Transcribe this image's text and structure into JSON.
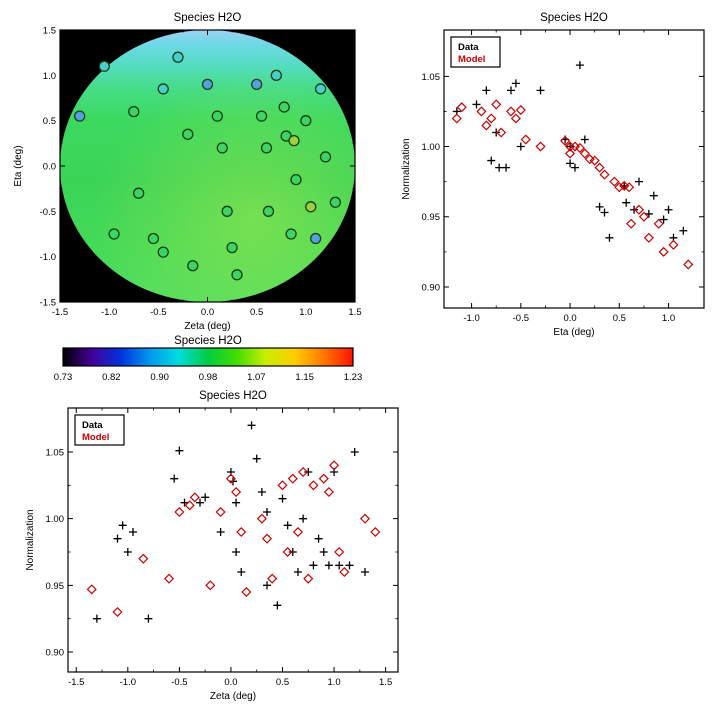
{
  "figure": {
    "background": "#ffffff"
  },
  "colors": {
    "data_series": "#000000",
    "model_series": "#cc0000",
    "map_background": "#000000"
  },
  "chart_data": [
    {
      "id": "map",
      "type": "heatmap",
      "title": "Species H2O",
      "xlabel": "Zeta (deg)",
      "ylabel": "Eta (deg)",
      "xlim": [
        -1.5,
        1.5
      ],
      "ylim": [
        -1.5,
        1.5
      ],
      "xticks": [
        -1.5,
        -1.0,
        -0.5,
        0.0,
        0.5,
        1.0,
        1.5
      ],
      "xtick_labels": [
        "-1.5",
        "-1.0",
        "-0.5",
        "0.0",
        "0.5",
        "1.0",
        "1.5"
      ],
      "yticks": [
        -1.5,
        -1.0,
        -0.5,
        0.0,
        0.5,
        1.0,
        1.5
      ],
      "ytick_labels": [
        "-1.5",
        "-1.0",
        "-0.5",
        "0.0",
        "0.5",
        "1.0",
        "1.5"
      ],
      "background": "#000000",
      "disk": {
        "center": [
          0.0,
          0.0
        ],
        "radius": 1.5,
        "gradient": [
          [
            0.0,
            "#9fd2f2"
          ],
          [
            0.05,
            "#6fd8e8"
          ],
          [
            0.13,
            "#55dcc0"
          ],
          [
            0.22,
            "#45dc85"
          ],
          [
            0.33,
            "#3cd95f"
          ],
          [
            0.55,
            "#3bd457"
          ],
          [
            0.8,
            "#44da58"
          ],
          [
            1.0,
            "#4edd60"
          ]
        ],
        "glow_color": "#b9e94a"
      },
      "points_marker": "circle",
      "points": [
        [
          -1.3,
          0.55,
          "#55a0dd"
        ],
        [
          -1.05,
          1.1,
          "#49cfc9"
        ],
        [
          -0.95,
          -0.75,
          "#3ed463"
        ],
        [
          -0.75,
          0.6,
          "#3ed463"
        ],
        [
          -0.7,
          -0.3,
          "#3ed463"
        ],
        [
          -0.55,
          -0.8,
          "#3ed463"
        ],
        [
          -0.45,
          -0.95,
          "#3ed463"
        ],
        [
          -0.45,
          0.85,
          "#49cfc9"
        ],
        [
          -0.3,
          1.2,
          "#49cfc9"
        ],
        [
          -0.2,
          0.35,
          "#3ed463"
        ],
        [
          -0.15,
          -1.1,
          "#3ed463"
        ],
        [
          0.0,
          0.9,
          "#55a0dd"
        ],
        [
          0.1,
          0.55,
          "#3ed463"
        ],
        [
          0.15,
          0.2,
          "#3ed463"
        ],
        [
          0.2,
          -0.5,
          "#3ed463"
        ],
        [
          0.25,
          -0.9,
          "#3ed463"
        ],
        [
          0.3,
          -1.2,
          "#3ed463"
        ],
        [
          0.5,
          0.9,
          "#55a0dd"
        ],
        [
          0.55,
          0.55,
          "#3ed463"
        ],
        [
          0.6,
          0.2,
          "#3ed463"
        ],
        [
          0.62,
          -0.5,
          "#3ed463"
        ],
        [
          0.7,
          1.0,
          "#49cfc9"
        ],
        [
          0.78,
          0.65,
          "#3ed463"
        ],
        [
          0.8,
          0.33,
          "#3ed463"
        ],
        [
          0.88,
          0.28,
          "#9fcf3e"
        ],
        [
          0.85,
          -0.75,
          "#3ed463"
        ],
        [
          0.9,
          -0.15,
          "#3ed463"
        ],
        [
          1.0,
          0.5,
          "#3ed463"
        ],
        [
          1.05,
          -0.45,
          "#9fcf3e"
        ],
        [
          1.1,
          -0.8,
          "#55a0dd"
        ],
        [
          1.15,
          0.85,
          "#49cfc9"
        ],
        [
          1.2,
          0.1,
          "#3ed463"
        ],
        [
          1.3,
          -0.4,
          "#3ed463"
        ]
      ]
    },
    {
      "id": "colorbar",
      "type": "colorbar",
      "title": "Species H2O",
      "tick_labels": [
        "0.73",
        "0.82",
        "0.90",
        "0.98",
        "1.07",
        "1.15",
        "1.23"
      ],
      "gradient": [
        "#000000",
        "#440099",
        "#0033dd",
        "#0099ee",
        "#00dddd",
        "#00cc44",
        "#44dd00",
        "#ccee00",
        "#ffcc00",
        "#ff7700",
        "#ff1100"
      ]
    },
    {
      "id": "eta",
      "type": "scatter",
      "title": "Species H2O",
      "xlabel": "Eta (deg)",
      "ylabel": "Normalization",
      "xlim": [
        -1.28,
        1.36
      ],
      "ylim": [
        0.885,
        1.083
      ],
      "xticks": [
        -1.0,
        -0.5,
        0.0,
        0.5,
        1.0
      ],
      "xtick_labels": [
        "-1.0",
        "-0.5",
        "0.0",
        "0.5",
        "1.0"
      ],
      "yticks": [
        0.9,
        0.95,
        1.0,
        1.05
      ],
      "ytick_labels": [
        "0.90",
        "0.95",
        "1.00",
        "1.05"
      ],
      "legend_position": "top-left",
      "series": [
        {
          "name": "Data",
          "marker": "plus",
          "color": "#000000",
          "points": [
            [
              -1.15,
              1.025
            ],
            [
              -0.95,
              1.03
            ],
            [
              -0.85,
              1.04
            ],
            [
              -0.8,
              1.065
            ],
            [
              -0.8,
              0.99
            ],
            [
              -0.75,
              1.01
            ],
            [
              -0.72,
              0.985
            ],
            [
              -0.65,
              0.985
            ],
            [
              -0.6,
              1.04
            ],
            [
              -0.55,
              1.045
            ],
            [
              -0.5,
              1.0
            ],
            [
              -0.3,
              1.04
            ],
            [
              -0.05,
              1.005
            ],
            [
              0.0,
              1.0
            ],
            [
              0.0,
              0.988
            ],
            [
              0.05,
              0.985
            ],
            [
              0.1,
              1.058
            ],
            [
              0.15,
              1.005
            ],
            [
              0.3,
              0.957
            ],
            [
              0.35,
              0.953
            ],
            [
              0.4,
              0.935
            ],
            [
              0.55,
              0.972
            ],
            [
              0.57,
              0.96
            ],
            [
              0.65,
              0.955
            ],
            [
              0.7,
              0.975
            ],
            [
              0.8,
              0.952
            ],
            [
              0.85,
              0.965
            ],
            [
              0.95,
              0.948
            ],
            [
              1.0,
              0.955
            ],
            [
              1.05,
              0.935
            ],
            [
              1.15,
              0.94
            ]
          ]
        },
        {
          "name": "Model",
          "marker": "diamond",
          "color": "#cc0000",
          "points": [
            [
              -1.15,
              1.02
            ],
            [
              -1.1,
              1.028
            ],
            [
              -0.9,
              1.025
            ],
            [
              -0.85,
              1.015
            ],
            [
              -0.8,
              1.02
            ],
            [
              -0.75,
              1.03
            ],
            [
              -0.7,
              1.01
            ],
            [
              -0.6,
              1.025
            ],
            [
              -0.55,
              1.02
            ],
            [
              -0.5,
              1.026
            ],
            [
              -0.45,
              1.005
            ],
            [
              -0.3,
              1.0
            ],
            [
              -0.05,
              1.004
            ],
            [
              0.0,
              1.0
            ],
            [
              0.0,
              0.995
            ],
            [
              0.05,
              1.0
            ],
            [
              0.1,
              0.999
            ],
            [
              0.15,
              0.995
            ],
            [
              0.2,
              0.991
            ],
            [
              0.25,
              0.99
            ],
            [
              0.3,
              0.985
            ],
            [
              0.35,
              0.98
            ],
            [
              0.45,
              0.975
            ],
            [
              0.5,
              0.971
            ],
            [
              0.55,
              0.972
            ],
            [
              0.6,
              0.971
            ],
            [
              0.62,
              0.945
            ],
            [
              0.7,
              0.955
            ],
            [
              0.75,
              0.95
            ],
            [
              0.8,
              0.935
            ],
            [
              0.9,
              0.945
            ],
            [
              0.95,
              0.925
            ],
            [
              1.05,
              0.93
            ],
            [
              1.2,
              0.916
            ]
          ]
        }
      ]
    },
    {
      "id": "zeta",
      "type": "scatter",
      "title": "Species H2O",
      "xlabel": "Zeta (deg)",
      "ylabel": "Normalization",
      "xlim": [
        -1.58,
        1.62
      ],
      "ylim": [
        0.885,
        1.083
      ],
      "xticks": [
        -1.5,
        -1.0,
        -0.5,
        0.0,
        0.5,
        1.0,
        1.5
      ],
      "xtick_labels": [
        "-1.5",
        "-1.0",
        "-0.5",
        "0.0",
        "0.5",
        "1.0",
        "1.5"
      ],
      "yticks": [
        0.9,
        0.95,
        1.0,
        1.05
      ],
      "ytick_labels": [
        "0.90",
        "0.95",
        "1.00",
        "1.05"
      ],
      "legend_position": "top-left",
      "series": [
        {
          "name": "Data",
          "marker": "plus",
          "color": "#000000",
          "points": [
            [
              -1.3,
              0.925
            ],
            [
              -1.1,
              0.985
            ],
            [
              -1.05,
              0.995
            ],
            [
              -1.0,
              0.975
            ],
            [
              -0.95,
              0.99
            ],
            [
              -0.8,
              0.925
            ],
            [
              -0.55,
              1.03
            ],
            [
              -0.5,
              1.051
            ],
            [
              -0.45,
              1.012
            ],
            [
              -0.3,
              1.012
            ],
            [
              -0.25,
              1.016
            ],
            [
              -0.1,
              0.99
            ],
            [
              0.0,
              1.035
            ],
            [
              0.02,
              1.028
            ],
            [
              0.05,
              1.012
            ],
            [
              0.05,
              0.975
            ],
            [
              0.1,
              0.96
            ],
            [
              0.2,
              1.07
            ],
            [
              0.25,
              1.045
            ],
            [
              0.3,
              1.02
            ],
            [
              0.35,
              1.005
            ],
            [
              0.35,
              0.95
            ],
            [
              0.45,
              0.935
            ],
            [
              0.5,
              1.015
            ],
            [
              0.55,
              0.995
            ],
            [
              0.6,
              0.975
            ],
            [
              0.65,
              0.96
            ],
            [
              0.7,
              1.0
            ],
            [
              0.75,
              1.035
            ],
            [
              0.8,
              0.965
            ],
            [
              0.85,
              0.985
            ],
            [
              0.9,
              0.975
            ],
            [
              0.95,
              0.965
            ],
            [
              1.0,
              1.035
            ],
            [
              1.05,
              0.965
            ],
            [
              1.15,
              0.965
            ],
            [
              1.2,
              1.05
            ],
            [
              1.3,
              0.96
            ]
          ]
        },
        {
          "name": "Model",
          "marker": "diamond",
          "color": "#cc0000",
          "points": [
            [
              -1.35,
              0.947
            ],
            [
              -1.1,
              0.93
            ],
            [
              -0.85,
              0.97
            ],
            [
              -0.6,
              0.955
            ],
            [
              -0.5,
              1.005
            ],
            [
              -0.4,
              1.01
            ],
            [
              -0.35,
              1.016
            ],
            [
              -0.2,
              0.95
            ],
            [
              -0.1,
              1.005
            ],
            [
              0.0,
              1.03
            ],
            [
              0.05,
              1.02
            ],
            [
              0.1,
              0.99
            ],
            [
              0.15,
              0.945
            ],
            [
              0.3,
              1.0
            ],
            [
              0.35,
              0.985
            ],
            [
              0.4,
              0.955
            ],
            [
              0.5,
              1.025
            ],
            [
              0.55,
              0.975
            ],
            [
              0.6,
              1.03
            ],
            [
              0.65,
              0.99
            ],
            [
              0.7,
              1.035
            ],
            [
              0.75,
              0.955
            ],
            [
              0.8,
              1.025
            ],
            [
              0.9,
              1.03
            ],
            [
              0.95,
              1.02
            ],
            [
              1.0,
              1.04
            ],
            [
              1.05,
              0.975
            ],
            [
              1.1,
              0.96
            ],
            [
              1.3,
              1.0
            ],
            [
              1.4,
              0.99
            ]
          ]
        }
      ]
    }
  ]
}
